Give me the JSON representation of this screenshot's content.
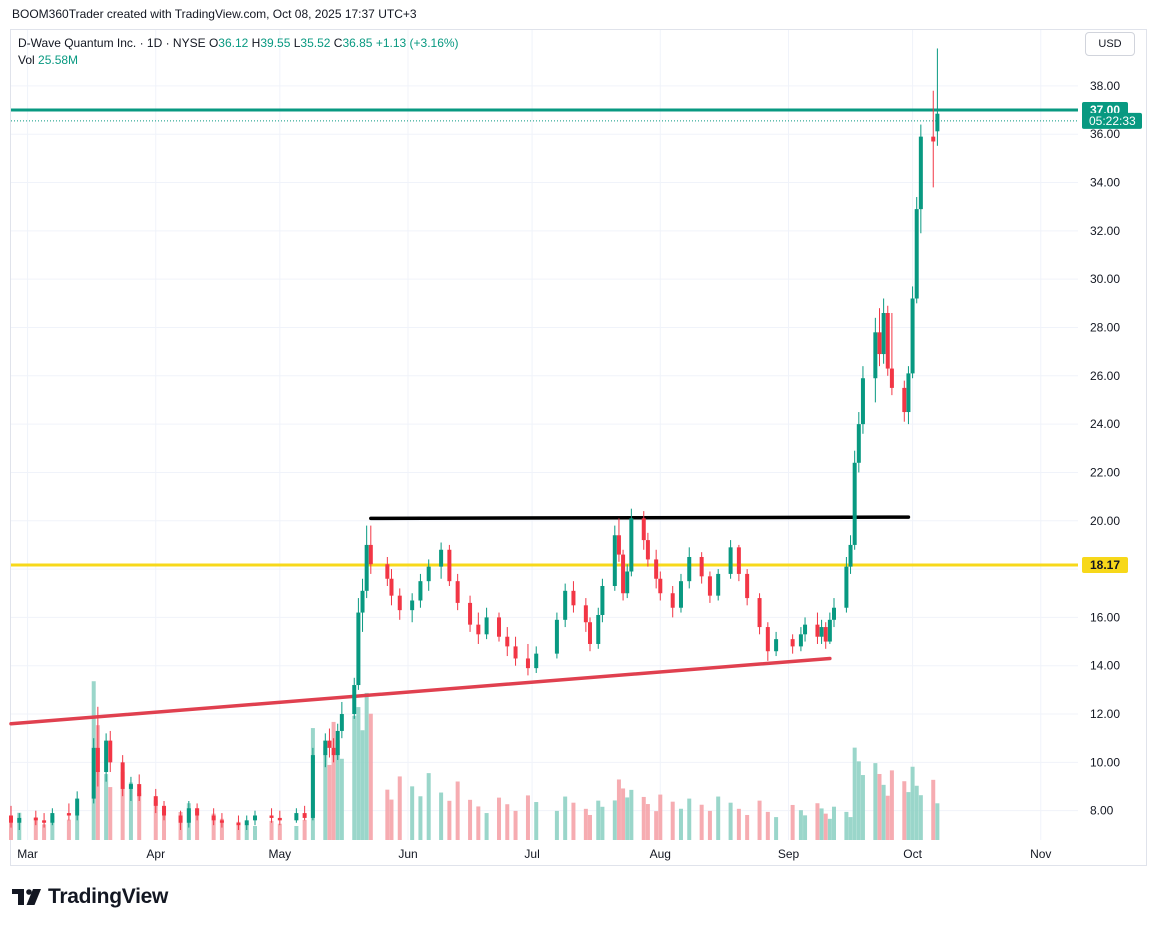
{
  "attribution": "BOOM360Trader created with TradingView.com, Oct 08, 2025 17:37 UTC+3",
  "legend": {
    "symbol": "D-Wave Quantum Inc. · 1D · NYSE",
    "open_label": "O",
    "open": "36.12",
    "high_label": "H",
    "high": "39.55",
    "low_label": "L",
    "low": "35.52",
    "close_label": "C",
    "close": "36.85",
    "change": "+1.13 (+3.16%)",
    "vol_label": "Vol",
    "vol": "25.58M"
  },
  "currency": "USD",
  "logo_text": "TradingView",
  "colors": {
    "up": "#089981",
    "down": "#f23645",
    "support": "#f7d81a",
    "resistance": "#000000",
    "trend": "#e0404f"
  },
  "chart_data": {
    "type": "candlestick",
    "y_axis": {
      "min": 7.2,
      "max": 39.9,
      "ticks": [
        8,
        10,
        12,
        14,
        16,
        18,
        20,
        22,
        24,
        26,
        28,
        30,
        32,
        34,
        36,
        38
      ],
      "side": "right"
    },
    "x_axis": {
      "start_date": "2025-02-25",
      "end_date": "2025-11-10",
      "month_labels": [
        {
          "label": "Mar",
          "date": "2025-03-01"
        },
        {
          "label": "Apr",
          "date": "2025-04-01"
        },
        {
          "label": "May",
          "date": "2025-05-01"
        },
        {
          "label": "Jun",
          "date": "2025-06-01"
        },
        {
          "label": "Jul",
          "date": "2025-07-01"
        },
        {
          "label": "Aug",
          "date": "2025-08-01"
        },
        {
          "label": "Sep",
          "date": "2025-09-01"
        },
        {
          "label": "Oct",
          "date": "2025-10-01"
        },
        {
          "label": "Nov",
          "date": "2025-11-01"
        }
      ]
    },
    "price_markers": [
      {
        "label": "37.00",
        "value": 37.0,
        "color": "#089981"
      },
      {
        "label": "05:22:33",
        "value": 36.55,
        "color": "#089981",
        "kind": "countdown"
      },
      {
        "label": "18.17",
        "value": 18.17,
        "color": "#f7d81a",
        "text_color": "#131722"
      }
    ],
    "horizontal_lines": [
      {
        "name": "last-price-line",
        "value": 37.0,
        "color": "#089981"
      },
      {
        "name": "support-line",
        "value": 18.17,
        "color": "#f7d81a"
      }
    ],
    "trend_lines": [
      {
        "name": "resistance-line",
        "color": "#000000",
        "p1": {
          "date": "2025-05-23",
          "value": 20.1
        },
        "p2": {
          "date": "2025-09-30",
          "value": 20.15
        }
      },
      {
        "name": "rising-trendline",
        "color": "#e0404f",
        "p1": {
          "date": "2025-02-25",
          "value": 11.6
        },
        "p2": {
          "date": "2025-09-11",
          "value": 14.3
        }
      }
    ],
    "candles": [
      {
        "date": "2025-02-25",
        "o": 7.8,
        "h": 8.2,
        "l": 7.3,
        "c": 7.5
      },
      {
        "date": "2025-02-27",
        "o": 7.5,
        "h": 7.9,
        "l": 7.2,
        "c": 7.7
      },
      {
        "date": "2025-03-03",
        "o": 7.7,
        "h": 8.0,
        "l": 7.4,
        "c": 7.6
      },
      {
        "date": "2025-03-05",
        "o": 7.6,
        "h": 7.9,
        "l": 7.3,
        "c": 7.5
      },
      {
        "date": "2025-03-07",
        "o": 7.5,
        "h": 8.1,
        "l": 7.4,
        "c": 7.9
      },
      {
        "date": "2025-03-11",
        "o": 7.9,
        "h": 8.3,
        "l": 7.6,
        "c": 7.8
      },
      {
        "date": "2025-03-13",
        "o": 7.8,
        "h": 8.8,
        "l": 7.6,
        "c": 8.5
      },
      {
        "date": "2025-03-17",
        "o": 8.5,
        "h": 11.0,
        "l": 8.3,
        "c": 10.6
      },
      {
        "date": "2025-03-18",
        "o": 10.6,
        "h": 12.3,
        "l": 9.0,
        "c": 9.6
      },
      {
        "date": "2025-03-20",
        "o": 9.6,
        "h": 11.2,
        "l": 9.2,
        "c": 10.9
      },
      {
        "date": "2025-03-21",
        "o": 10.9,
        "h": 11.3,
        "l": 9.6,
        "c": 10.0
      },
      {
        "date": "2025-03-24",
        "o": 10.0,
        "h": 10.3,
        "l": 8.6,
        "c": 8.9
      },
      {
        "date": "2025-03-26",
        "o": 8.9,
        "h": 9.4,
        "l": 8.4,
        "c": 9.1
      },
      {
        "date": "2025-03-28",
        "o": 9.1,
        "h": 9.5,
        "l": 8.4,
        "c": 8.6
      },
      {
        "date": "2025-04-01",
        "o": 8.6,
        "h": 8.9,
        "l": 7.9,
        "c": 8.2
      },
      {
        "date": "2025-04-03",
        "o": 8.2,
        "h": 8.4,
        "l": 7.6,
        "c": 7.8
      },
      {
        "date": "2025-04-07",
        "o": 7.8,
        "h": 8.0,
        "l": 7.2,
        "c": 7.5
      },
      {
        "date": "2025-04-09",
        "o": 7.5,
        "h": 8.4,
        "l": 7.3,
        "c": 8.1
      },
      {
        "date": "2025-04-11",
        "o": 8.1,
        "h": 8.3,
        "l": 7.6,
        "c": 7.8
      },
      {
        "date": "2025-04-15",
        "o": 7.8,
        "h": 8.1,
        "l": 7.4,
        "c": 7.6
      },
      {
        "date": "2025-04-17",
        "o": 7.6,
        "h": 7.9,
        "l": 7.3,
        "c": 7.5
      },
      {
        "date": "2025-04-21",
        "o": 7.5,
        "h": 7.8,
        "l": 7.2,
        "c": 7.4
      },
      {
        "date": "2025-04-23",
        "o": 7.4,
        "h": 7.8,
        "l": 7.2,
        "c": 7.6
      },
      {
        "date": "2025-04-25",
        "o": 7.6,
        "h": 8.0,
        "l": 7.4,
        "c": 7.8
      },
      {
        "date": "2025-04-29",
        "o": 7.8,
        "h": 8.1,
        "l": 7.5,
        "c": 7.7
      },
      {
        "date": "2025-05-01",
        "o": 7.7,
        "h": 8.0,
        "l": 7.4,
        "c": 7.6
      },
      {
        "date": "2025-05-05",
        "o": 7.6,
        "h": 8.1,
        "l": 7.5,
        "c": 7.9
      },
      {
        "date": "2025-05-07",
        "o": 7.9,
        "h": 8.2,
        "l": 7.6,
        "c": 7.7
      },
      {
        "date": "2025-05-09",
        "o": 7.7,
        "h": 10.6,
        "l": 7.6,
        "c": 10.3
      },
      {
        "date": "2025-05-12",
        "o": 10.3,
        "h": 11.2,
        "l": 9.8,
        "c": 10.9
      },
      {
        "date": "2025-05-13",
        "o": 10.9,
        "h": 11.4,
        "l": 10.2,
        "c": 10.6
      },
      {
        "date": "2025-05-14",
        "o": 10.6,
        "h": 11.0,
        "l": 10.0,
        "c": 10.3
      },
      {
        "date": "2025-05-15",
        "o": 10.3,
        "h": 11.6,
        "l": 10.1,
        "c": 11.3
      },
      {
        "date": "2025-05-16",
        "o": 11.3,
        "h": 12.5,
        "l": 11.0,
        "c": 12.0
      },
      {
        "date": "2025-05-19",
        "o": 12.0,
        "h": 13.5,
        "l": 11.8,
        "c": 13.2
      },
      {
        "date": "2025-05-20",
        "o": 13.2,
        "h": 16.8,
        "l": 13.0,
        "c": 16.2
      },
      {
        "date": "2025-05-21",
        "o": 16.2,
        "h": 17.6,
        "l": 15.4,
        "c": 17.1
      },
      {
        "date": "2025-05-22",
        "o": 17.1,
        "h": 19.8,
        "l": 16.8,
        "c": 19.0
      },
      {
        "date": "2025-05-23",
        "o": 19.0,
        "h": 19.8,
        "l": 17.8,
        "c": 18.2
      },
      {
        "date": "2025-05-27",
        "o": 18.2,
        "h": 18.5,
        "l": 17.3,
        "c": 17.6
      },
      {
        "date": "2025-05-28",
        "o": 17.6,
        "h": 18.0,
        "l": 16.5,
        "c": 16.9
      },
      {
        "date": "2025-05-30",
        "o": 16.9,
        "h": 17.2,
        "l": 15.9,
        "c": 16.3
      },
      {
        "date": "2025-06-02",
        "o": 16.3,
        "h": 17.0,
        "l": 15.8,
        "c": 16.7
      },
      {
        "date": "2025-06-04",
        "o": 16.7,
        "h": 17.8,
        "l": 16.4,
        "c": 17.5
      },
      {
        "date": "2025-06-06",
        "o": 17.5,
        "h": 18.4,
        "l": 17.1,
        "c": 18.1
      },
      {
        "date": "2025-06-09",
        "o": 18.1,
        "h": 19.1,
        "l": 17.6,
        "c": 18.8
      },
      {
        "date": "2025-06-11",
        "o": 18.8,
        "h": 19.0,
        "l": 17.3,
        "c": 17.5
      },
      {
        "date": "2025-06-13",
        "o": 17.5,
        "h": 17.8,
        "l": 16.3,
        "c": 16.6
      },
      {
        "date": "2025-06-16",
        "o": 16.6,
        "h": 16.9,
        "l": 15.4,
        "c": 15.7
      },
      {
        "date": "2025-06-18",
        "o": 15.7,
        "h": 16.2,
        "l": 14.9,
        "c": 15.3
      },
      {
        "date": "2025-06-20",
        "o": 15.3,
        "h": 16.4,
        "l": 15.1,
        "c": 16.0
      },
      {
        "date": "2025-06-23",
        "o": 16.0,
        "h": 16.2,
        "l": 15.0,
        "c": 15.2
      },
      {
        "date": "2025-06-25",
        "o": 15.2,
        "h": 15.6,
        "l": 14.4,
        "c": 14.8
      },
      {
        "date": "2025-06-27",
        "o": 14.8,
        "h": 15.2,
        "l": 14.0,
        "c": 14.3
      },
      {
        "date": "2025-06-30",
        "o": 14.3,
        "h": 14.9,
        "l": 13.6,
        "c": 13.9
      },
      {
        "date": "2025-07-02",
        "o": 13.9,
        "h": 14.8,
        "l": 13.7,
        "c": 14.5
      },
      {
        "date": "2025-07-07",
        "o": 14.5,
        "h": 16.2,
        "l": 14.3,
        "c": 15.9
      },
      {
        "date": "2025-07-09",
        "o": 15.9,
        "h": 17.4,
        "l": 15.6,
        "c": 17.1
      },
      {
        "date": "2025-07-11",
        "o": 17.1,
        "h": 17.5,
        "l": 16.2,
        "c": 16.5
      },
      {
        "date": "2025-07-14",
        "o": 16.5,
        "h": 16.8,
        "l": 15.4,
        "c": 15.8
      },
      {
        "date": "2025-07-15",
        "o": 15.8,
        "h": 16.0,
        "l": 14.6,
        "c": 14.9
      },
      {
        "date": "2025-07-17",
        "o": 14.9,
        "h": 16.4,
        "l": 14.7,
        "c": 16.1
      },
      {
        "date": "2025-07-18",
        "o": 16.1,
        "h": 17.6,
        "l": 15.8,
        "c": 17.3
      },
      {
        "date": "2025-07-21",
        "o": 17.3,
        "h": 19.8,
        "l": 17.1,
        "c": 19.4
      },
      {
        "date": "2025-07-22",
        "o": 19.4,
        "h": 20.1,
        "l": 18.3,
        "c": 18.6
      },
      {
        "date": "2025-07-23",
        "o": 18.6,
        "h": 18.8,
        "l": 16.7,
        "c": 17.0
      },
      {
        "date": "2025-07-24",
        "o": 17.0,
        "h": 18.2,
        "l": 16.8,
        "c": 17.9
      },
      {
        "date": "2025-07-25",
        "o": 17.9,
        "h": 20.5,
        "l": 17.7,
        "c": 20.1
      },
      {
        "date": "2025-07-28",
        "o": 20.1,
        "h": 20.4,
        "l": 18.8,
        "c": 19.2
      },
      {
        "date": "2025-07-29",
        "o": 19.2,
        "h": 19.5,
        "l": 18.1,
        "c": 18.4
      },
      {
        "date": "2025-07-31",
        "o": 18.4,
        "h": 18.8,
        "l": 17.2,
        "c": 17.6
      },
      {
        "date": "2025-08-01",
        "o": 17.6,
        "h": 17.9,
        "l": 16.7,
        "c": 17.0
      },
      {
        "date": "2025-08-04",
        "o": 17.0,
        "h": 17.3,
        "l": 16.0,
        "c": 16.4
      },
      {
        "date": "2025-08-06",
        "o": 16.4,
        "h": 17.8,
        "l": 16.2,
        "c": 17.5
      },
      {
        "date": "2025-08-08",
        "o": 17.5,
        "h": 18.9,
        "l": 17.2,
        "c": 18.5
      },
      {
        "date": "2025-08-11",
        "o": 18.5,
        "h": 18.7,
        "l": 17.4,
        "c": 17.7
      },
      {
        "date": "2025-08-13",
        "o": 17.7,
        "h": 17.9,
        "l": 16.6,
        "c": 16.9
      },
      {
        "date": "2025-08-15",
        "o": 16.9,
        "h": 18.0,
        "l": 16.7,
        "c": 17.8
      },
      {
        "date": "2025-08-18",
        "o": 17.8,
        "h": 19.2,
        "l": 17.6,
        "c": 18.9
      },
      {
        "date": "2025-08-20",
        "o": 18.9,
        "h": 19.0,
        "l": 17.5,
        "c": 17.8
      },
      {
        "date": "2025-08-22",
        "o": 17.8,
        "h": 18.0,
        "l": 16.5,
        "c": 16.8
      },
      {
        "date": "2025-08-25",
        "o": 16.8,
        "h": 17.0,
        "l": 15.3,
        "c": 15.6
      },
      {
        "date": "2025-08-27",
        "o": 15.6,
        "h": 15.8,
        "l": 14.2,
        "c": 14.6
      },
      {
        "date": "2025-08-29",
        "o": 14.6,
        "h": 15.4,
        "l": 14.4,
        "c": 15.1
      },
      {
        "date": "2025-09-02",
        "o": 15.1,
        "h": 15.3,
        "l": 14.5,
        "c": 14.8
      },
      {
        "date": "2025-09-04",
        "o": 14.8,
        "h": 15.6,
        "l": 14.6,
        "c": 15.3
      },
      {
        "date": "2025-09-05",
        "o": 15.3,
        "h": 16.0,
        "l": 15.0,
        "c": 15.7
      },
      {
        "date": "2025-09-08",
        "o": 15.7,
        "h": 16.2,
        "l": 14.9,
        "c": 15.2
      },
      {
        "date": "2025-09-09",
        "o": 15.2,
        "h": 15.9,
        "l": 14.9,
        "c": 15.6
      },
      {
        "date": "2025-09-10",
        "o": 15.6,
        "h": 15.8,
        "l": 14.7,
        "c": 15.0
      },
      {
        "date": "2025-09-11",
        "o": 15.0,
        "h": 16.2,
        "l": 14.9,
        "c": 15.9
      },
      {
        "date": "2025-09-12",
        "o": 15.9,
        "h": 16.8,
        "l": 15.6,
        "c": 16.4
      },
      {
        "date": "2025-09-15",
        "o": 16.4,
        "h": 18.5,
        "l": 16.2,
        "c": 18.1
      },
      {
        "date": "2025-09-16",
        "o": 18.1,
        "h": 19.4,
        "l": 17.8,
        "c": 19.0
      },
      {
        "date": "2025-09-17",
        "o": 19.0,
        "h": 22.9,
        "l": 18.8,
        "c": 22.4
      },
      {
        "date": "2025-09-18",
        "o": 22.4,
        "h": 24.5,
        "l": 22.0,
        "c": 24.0
      },
      {
        "date": "2025-09-19",
        "o": 24.0,
        "h": 26.4,
        "l": 23.6,
        "c": 25.9
      },
      {
        "date": "2025-09-22",
        "o": 25.9,
        "h": 28.4,
        "l": 24.9,
        "c": 27.8
      },
      {
        "date": "2025-09-23",
        "o": 27.8,
        "h": 28.8,
        "l": 26.4,
        "c": 26.9
      },
      {
        "date": "2025-09-24",
        "o": 26.9,
        "h": 29.2,
        "l": 26.5,
        "c": 28.6
      },
      {
        "date": "2025-09-25",
        "o": 28.6,
        "h": 28.9,
        "l": 26.0,
        "c": 26.3
      },
      {
        "date": "2025-09-26",
        "o": 26.3,
        "h": 28.6,
        "l": 25.2,
        "c": 25.5
      },
      {
        "date": "2025-09-29",
        "o": 25.5,
        "h": 25.8,
        "l": 24.1,
        "c": 24.5
      },
      {
        "date": "2025-09-30",
        "o": 24.5,
        "h": 26.4,
        "l": 24.0,
        "c": 26.1
      },
      {
        "date": "2025-10-01",
        "o": 26.1,
        "h": 29.7,
        "l": 25.9,
        "c": 29.2
      },
      {
        "date": "2025-10-02",
        "o": 29.2,
        "h": 33.4,
        "l": 29.0,
        "c": 32.9
      },
      {
        "date": "2025-10-03",
        "o": 32.9,
        "h": 36.4,
        "l": 31.9,
        "c": 35.9
      },
      {
        "date": "2025-10-06",
        "o": 35.9,
        "h": 37.8,
        "l": 33.8,
        "c": 35.7
      },
      {
        "date": "2025-10-07",
        "o": 36.12,
        "h": 39.55,
        "l": 35.52,
        "c": 36.85
      }
    ],
    "volume": {
      "unit": "shares",
      "values": [
        {
          "date": "2025-02-25",
          "v": 18,
          "dir": "down"
        },
        {
          "date": "2025-03-05",
          "v": 15,
          "dir": "down"
        },
        {
          "date": "2025-03-13",
          "v": 22,
          "dir": "up"
        },
        {
          "date": "2025-03-17",
          "v": 95,
          "dir": "up"
        },
        {
          "date": "2025-03-18",
          "v": 80,
          "dir": "down"
        },
        {
          "date": "2025-03-20",
          "v": 55,
          "dir": "up"
        },
        {
          "date": "2025-03-24",
          "v": 45,
          "dir": "down"
        },
        {
          "date": "2025-04-01",
          "v": 25,
          "dir": "down"
        },
        {
          "date": "2025-04-09",
          "v": 22,
          "dir": "up"
        },
        {
          "date": "2025-04-21",
          "v": 12,
          "dir": "down"
        },
        {
          "date": "2025-05-09",
          "v": 78,
          "dir": "up"
        },
        {
          "date": "2025-05-20",
          "v": 98,
          "dir": "up"
        },
        {
          "date": "2025-05-22",
          "v": 88,
          "dir": "up"
        },
        {
          "date": "2025-05-27",
          "v": 42,
          "dir": "down"
        },
        {
          "date": "2025-06-09",
          "v": 35,
          "dir": "up"
        },
        {
          "date": "2025-06-16",
          "v": 28,
          "dir": "down"
        },
        {
          "date": "2025-07-07",
          "v": 26,
          "dir": "up"
        },
        {
          "date": "2025-07-21",
          "v": 38,
          "dir": "up"
        },
        {
          "date": "2025-07-25",
          "v": 30,
          "dir": "up"
        },
        {
          "date": "2025-08-08",
          "v": 26,
          "dir": "up"
        },
        {
          "date": "2025-08-27",
          "v": 22,
          "dir": "down"
        },
        {
          "date": "2025-09-17",
          "v": 58,
          "dir": "up"
        },
        {
          "date": "2025-09-22",
          "v": 46,
          "dir": "up"
        },
        {
          "date": "2025-10-02",
          "v": 40,
          "dir": "up"
        },
        {
          "date": "2025-10-06",
          "v": 36,
          "dir": "down"
        },
        {
          "date": "2025-10-07",
          "v": 25.58,
          "dir": "up"
        }
      ]
    }
  }
}
